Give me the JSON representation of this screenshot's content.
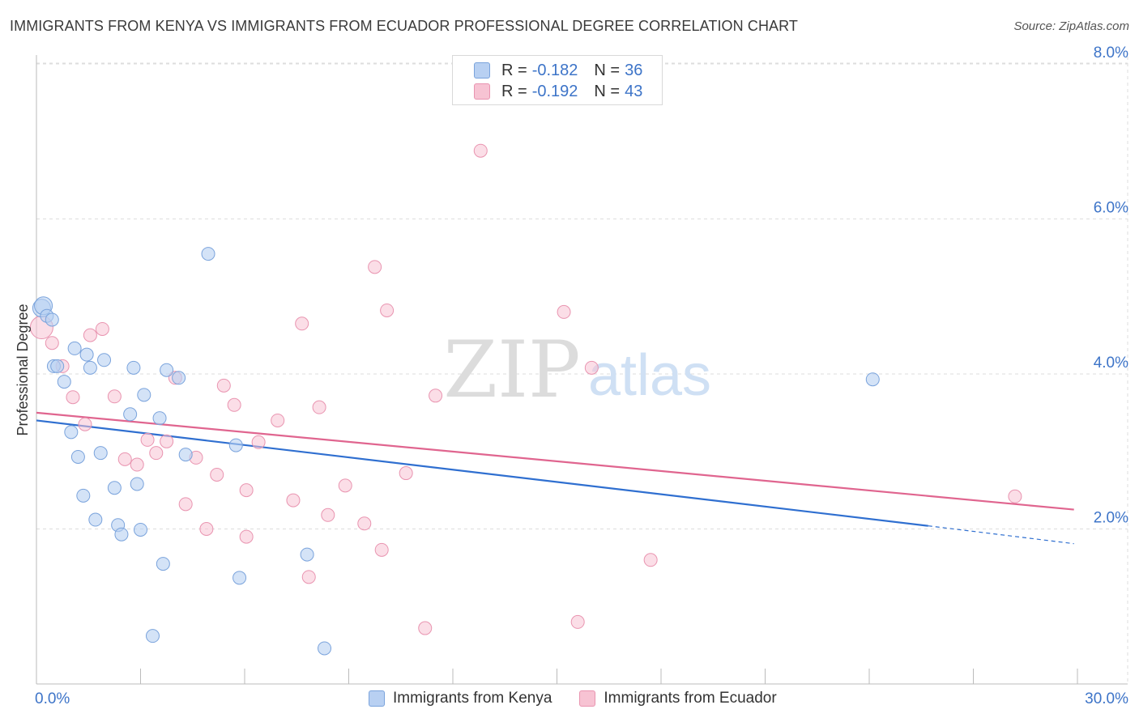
{
  "title": "IMMIGRANTS FROM KENYA VS IMMIGRANTS FROM ECUADOR PROFESSIONAL DEGREE CORRELATION CHART",
  "source": "Source: ZipAtlas.com",
  "watermark": {
    "zip": "ZIP",
    "atlas": "atlas"
  },
  "colors": {
    "kenya_fill": "#b8d0f2",
    "kenya_stroke": "#7aa3dc",
    "kenya_line": "#2f6fd0",
    "ecuador_fill": "#f7c3d3",
    "ecuador_stroke": "#e994b0",
    "ecuador_line": "#e0658f",
    "axis_text": "#3d74c8",
    "grid": "#dddddd"
  },
  "legend": {
    "kenya": {
      "r_label": "R =",
      "r_value": "-0.182",
      "n_label": "N =",
      "n_value": "36"
    },
    "ecuador": {
      "r_label": "R =",
      "r_value": "-0.192",
      "n_label": "N =",
      "n_value": "43"
    }
  },
  "bottom_legend": {
    "kenya": "Immigrants from Kenya",
    "ecuador": "Immigrants from Ecuador"
  },
  "chart_data": {
    "type": "scatter",
    "title": "IMMIGRANTS FROM KENYA VS IMMIGRANTS FROM ECUADOR PROFESSIONAL DEGREE CORRELATION CHART",
    "xlabel": "",
    "ylabel": "Professional Degree",
    "xlim": [
      0,
      30
    ],
    "ylim": [
      0,
      8.2
    ],
    "x_tick_labels": [
      "0.0%",
      "30.0%"
    ],
    "y_ticks": [
      2,
      4,
      6,
      8
    ],
    "y_tick_labels": [
      "2.0%",
      "4.0%",
      "6.0%",
      "8.0%"
    ],
    "series": [
      {
        "name": "Immigrants from Kenya",
        "r": -0.182,
        "n": 36,
        "trend": {
          "x0": 0,
          "y0": 3.4,
          "x1": 25.7,
          "y1": 2.04,
          "dash_to_x": 29.9,
          "dash_to_y": 1.81
        },
        "points": [
          {
            "x": 0.15,
            "y": 4.85
          },
          {
            "x": 0.2,
            "y": 4.88
          },
          {
            "x": 0.3,
            "y": 4.75
          },
          {
            "x": 0.45,
            "y": 4.7
          },
          {
            "x": 0.5,
            "y": 4.1
          },
          {
            "x": 0.8,
            "y": 3.9
          },
          {
            "x": 1.0,
            "y": 3.25
          },
          {
            "x": 1.1,
            "y": 4.33
          },
          {
            "x": 1.2,
            "y": 2.93
          },
          {
            "x": 1.35,
            "y": 2.43
          },
          {
            "x": 1.45,
            "y": 4.25
          },
          {
            "x": 1.55,
            "y": 4.08
          },
          {
            "x": 1.7,
            "y": 2.12
          },
          {
            "x": 1.85,
            "y": 2.98
          },
          {
            "x": 1.95,
            "y": 4.18
          },
          {
            "x": 2.25,
            "y": 2.53
          },
          {
            "x": 2.35,
            "y": 2.05
          },
          {
            "x": 2.45,
            "y": 1.93
          },
          {
            "x": 2.7,
            "y": 3.48
          },
          {
            "x": 2.8,
            "y": 4.08
          },
          {
            "x": 2.9,
            "y": 2.58
          },
          {
            "x": 3.0,
            "y": 1.99
          },
          {
            "x": 3.1,
            "y": 3.73
          },
          {
            "x": 3.55,
            "y": 3.43
          },
          {
            "x": 3.65,
            "y": 1.55
          },
          {
            "x": 3.75,
            "y": 4.05
          },
          {
            "x": 4.1,
            "y": 3.95
          },
          {
            "x": 4.3,
            "y": 2.96
          },
          {
            "x": 3.35,
            "y": 0.62
          },
          {
            "x": 4.95,
            "y": 5.55
          },
          {
            "x": 5.75,
            "y": 3.08
          },
          {
            "x": 5.85,
            "y": 1.37
          },
          {
            "x": 7.8,
            "y": 1.67
          },
          {
            "x": 8.3,
            "y": 0.46
          },
          {
            "x": 24.1,
            "y": 3.93
          },
          {
            "x": 0.6,
            "y": 4.1
          }
        ]
      },
      {
        "name": "Immigrants from Ecuador",
        "r": -0.192,
        "n": 43,
        "trend": {
          "x0": 0,
          "y0": 3.5,
          "x1": 29.9,
          "y1": 2.25
        },
        "points": [
          {
            "x": 0.15,
            "y": 4.6
          },
          {
            "x": 0.45,
            "y": 4.4
          },
          {
            "x": 0.75,
            "y": 4.1
          },
          {
            "x": 1.05,
            "y": 3.7
          },
          {
            "x": 1.4,
            "y": 3.35
          },
          {
            "x": 1.55,
            "y": 4.5
          },
          {
            "x": 1.9,
            "y": 4.58
          },
          {
            "x": 2.25,
            "y": 3.71
          },
          {
            "x": 2.55,
            "y": 2.9
          },
          {
            "x": 2.9,
            "y": 2.83
          },
          {
            "x": 3.2,
            "y": 3.15
          },
          {
            "x": 3.45,
            "y": 2.98
          },
          {
            "x": 3.75,
            "y": 3.13
          },
          {
            "x": 4.0,
            "y": 3.95
          },
          {
            "x": 4.3,
            "y": 2.32
          },
          {
            "x": 4.6,
            "y": 2.92
          },
          {
            "x": 4.9,
            "y": 2.0
          },
          {
            "x": 5.2,
            "y": 2.7
          },
          {
            "x": 5.4,
            "y": 3.85
          },
          {
            "x": 5.7,
            "y": 3.6
          },
          {
            "x": 6.05,
            "y": 1.9
          },
          {
            "x": 6.05,
            "y": 2.5
          },
          {
            "x": 6.4,
            "y": 3.12
          },
          {
            "x": 6.95,
            "y": 3.4
          },
          {
            "x": 7.4,
            "y": 2.37
          },
          {
            "x": 7.65,
            "y": 4.65
          },
          {
            "x": 7.85,
            "y": 1.38
          },
          {
            "x": 8.15,
            "y": 3.57
          },
          {
            "x": 8.4,
            "y": 2.18
          },
          {
            "x": 8.9,
            "y": 2.56
          },
          {
            "x": 9.45,
            "y": 2.07
          },
          {
            "x": 9.75,
            "y": 5.38
          },
          {
            "x": 9.95,
            "y": 1.73
          },
          {
            "x": 10.1,
            "y": 4.82
          },
          {
            "x": 10.65,
            "y": 2.72
          },
          {
            "x": 11.2,
            "y": 0.72
          },
          {
            "x": 11.5,
            "y": 3.72
          },
          {
            "x": 12.8,
            "y": 6.88
          },
          {
            "x": 15.2,
            "y": 4.8
          },
          {
            "x": 15.6,
            "y": 0.8
          },
          {
            "x": 16.0,
            "y": 4.08
          },
          {
            "x": 17.7,
            "y": 1.6
          },
          {
            "x": 28.2,
            "y": 2.42
          }
        ]
      }
    ]
  }
}
